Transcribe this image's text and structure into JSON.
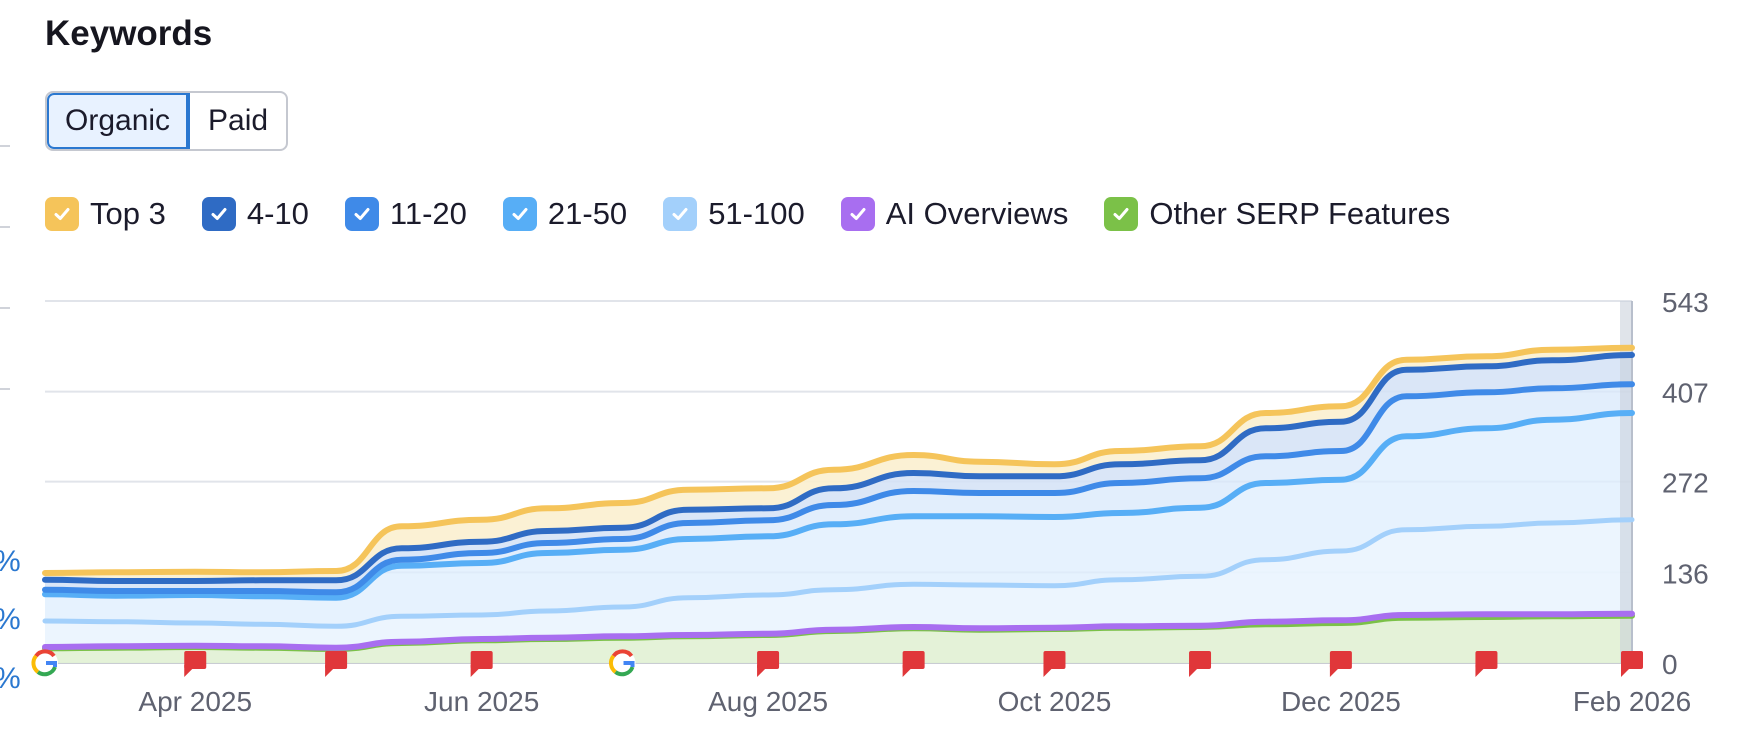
{
  "title": "Keywords",
  "toggle": {
    "organic_label": "Organic",
    "paid_label": "Paid",
    "active": "organic"
  },
  "legend": [
    {
      "label": "Top 3",
      "color": "#f5c45a",
      "checked": true
    },
    {
      "label": "4-10",
      "color": "#2f6bc4",
      "checked": true
    },
    {
      "label": "11-20",
      "color": "#3f8ae8",
      "checked": true
    },
    {
      "label": "21-50",
      "color": "#57aef6",
      "checked": true
    },
    {
      "label": "51-100",
      "color": "#a3d0fb",
      "checked": true
    },
    {
      "label": "AI Overviews",
      "color": "#a86ef0",
      "checked": true
    },
    {
      "label": "Other SERP Features",
      "color": "#7bc148",
      "checked": true
    }
  ],
  "left_fragments": [
    "%",
    "%",
    "%"
  ],
  "chart_data": {
    "type": "area",
    "x": [
      "2025-02-28",
      "2025-03-15",
      "2025-04-01",
      "2025-04-15",
      "2025-05-01",
      "2025-05-15",
      "2025-06-01",
      "2025-06-15",
      "2025-07-01",
      "2025-07-15",
      "2025-08-01",
      "2025-08-15",
      "2025-09-01",
      "2025-09-15",
      "2025-10-01",
      "2025-10-15",
      "2025-11-01",
      "2025-11-15",
      "2025-12-01",
      "2025-12-15",
      "2026-01-01",
      "2026-01-15",
      "2026-02-01"
    ],
    "x_tick_labels": [
      "Apr 2025",
      "Jun 2025",
      "Aug 2025",
      "Oct 2025",
      "Dec 2025",
      "Feb 2026"
    ],
    "x_ticks": [
      "2025-04-01",
      "2025-06-01",
      "2025-08-01",
      "2025-10-01",
      "2025-12-01",
      "2026-02-01"
    ],
    "y_ticks": [
      0,
      136,
      272,
      407,
      543
    ],
    "ylim": [
      0,
      543
    ],
    "y_axis_position": "right",
    "series": [
      {
        "name": "Top 3",
        "color": "#f5c45a",
        "values": [
          135,
          136,
          137,
          136,
          138,
          205,
          215,
          232,
          240,
          260,
          262,
          290,
          312,
          302,
          298,
          318,
          325,
          375,
          385,
          455,
          460,
          470,
          473
        ]
      },
      {
        "name": "4-10",
        "color": "#2f6bc4",
        "values": [
          125,
          123,
          123,
          124,
          124,
          172,
          182,
          198,
          203,
          230,
          232,
          262,
          285,
          280,
          280,
          298,
          304,
          352,
          362,
          440,
          445,
          454,
          462
        ]
      },
      {
        "name": "11-20",
        "color": "#3f8ae8",
        "values": [
          110,
          108,
          108,
          108,
          106,
          155,
          165,
          180,
          186,
          210,
          214,
          237,
          258,
          255,
          255,
          270,
          277,
          310,
          318,
          400,
          406,
          412,
          418
        ]
      },
      {
        "name": "21-50",
        "color": "#57aef6",
        "values": [
          103,
          101,
          102,
          100,
          98,
          146,
          150,
          165,
          170,
          186,
          190,
          208,
          220,
          220,
          219,
          225,
          233,
          270,
          275,
          340,
          352,
          365,
          375
        ]
      },
      {
        "name": "51-100",
        "color": "#a3d0fb",
        "values": [
          63,
          62,
          60,
          58,
          55,
          70,
          72,
          78,
          84,
          98,
          102,
          110,
          118,
          117,
          116,
          125,
          130,
          155,
          168,
          200,
          205,
          210,
          215
        ]
      },
      {
        "name": "AI Overviews",
        "color": "#a86ef0",
        "values": [
          24,
          25,
          26,
          25,
          23,
          32,
          36,
          38,
          40,
          42,
          44,
          50,
          54,
          52,
          53,
          55,
          56,
          62,
          64,
          72,
          73,
          73,
          74
        ]
      },
      {
        "name": "Other SERP Features",
        "color": "#7bc148",
        "values": [
          22,
          23,
          24,
          23,
          21,
          30,
          34,
          36,
          38,
          40,
          42,
          48,
          52,
          50,
          51,
          53,
          54,
          58,
          60,
          68,
          69,
          70,
          71
        ]
      }
    ],
    "markers": [
      {
        "type": "google",
        "date": "2025-02-28"
      },
      {
        "type": "flag",
        "date": "2025-04-01"
      },
      {
        "type": "flag",
        "date": "2025-05-01"
      },
      {
        "type": "flag",
        "date": "2025-06-01"
      },
      {
        "type": "google",
        "date": "2025-07-01"
      },
      {
        "type": "flag",
        "date": "2025-08-01"
      },
      {
        "type": "flag",
        "date": "2025-09-01"
      },
      {
        "type": "flag",
        "date": "2025-10-01"
      },
      {
        "type": "flag",
        "date": "2025-11-01"
      },
      {
        "type": "flag",
        "date": "2025-12-01"
      },
      {
        "type": "flag",
        "date": "2026-01-01"
      },
      {
        "type": "flag",
        "date": "2026-02-01"
      }
    ],
    "grid": true,
    "legend_position": "top-left"
  }
}
